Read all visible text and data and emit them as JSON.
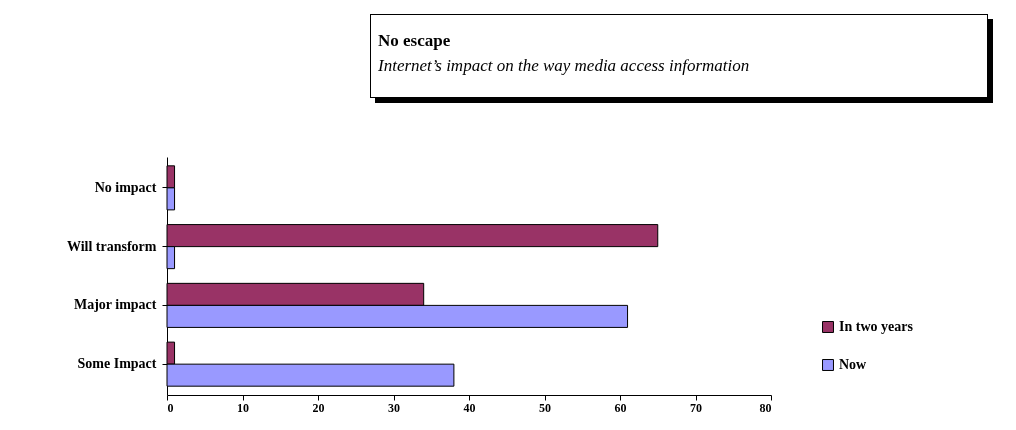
{
  "chart_data": {
    "type": "bar",
    "orientation": "horizontal",
    "title": "No escape",
    "subtitle": "Internet’s impact on the way media access information",
    "categories": [
      "No impact",
      "Will transform",
      "Major impact",
      "Some Impact"
    ],
    "series": [
      {
        "name": "In two years",
        "color": "#993366",
        "values": [
          1,
          65,
          34,
          1
        ]
      },
      {
        "name": "Now",
        "color": "#9999ff",
        "values": [
          1,
          1,
          61,
          38
        ]
      }
    ],
    "xlim": [
      0,
      80
    ],
    "xticks": [
      0,
      10,
      20,
      30,
      40,
      50,
      60,
      70,
      80
    ],
    "grid": false,
    "legend": "bottom right"
  }
}
